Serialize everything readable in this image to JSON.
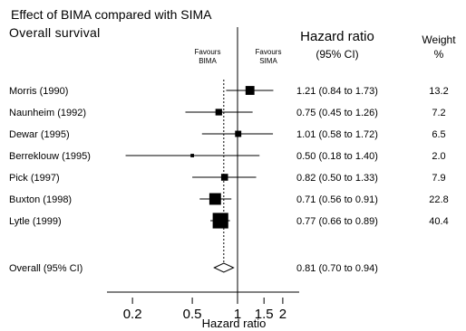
{
  "chart_data": {
    "type": "forest",
    "title": "Effect of BIMA compared with SIMA",
    "subtitle": "Overall survival",
    "left_favours": "Favours BIMA",
    "right_favours": "Favours SIMA",
    "hr_header": "Hazard ratio",
    "hr_subheader": "(95% CI)",
    "weight_header": "Weight",
    "weight_unit": "%",
    "xlabel": "Hazard ratio",
    "x_scale": "log",
    "x_ticks": [
      0.2,
      0.5,
      1,
      1.5,
      2
    ],
    "x_tick_labels": [
      "0.2",
      "0.5",
      "1",
      "1.5",
      "2"
    ],
    "reference_line": 1,
    "pooled_line": 0.81,
    "studies": [
      {
        "name": "Morris (1990)",
        "hr": 1.21,
        "lo": 0.84,
        "hi": 1.73,
        "ci_text": "1.21 (0.84 to 1.73)",
        "weight": 13.2,
        "weight_text": "13.2"
      },
      {
        "name": "Naunheim (1992)",
        "hr": 0.75,
        "lo": 0.45,
        "hi": 1.26,
        "ci_text": "0.75 (0.45 to 1.26)",
        "weight": 7.2,
        "weight_text": "7.2"
      },
      {
        "name": "Dewar (1995)",
        "hr": 1.01,
        "lo": 0.58,
        "hi": 1.72,
        "ci_text": "1.01 (0.58 to 1.72)",
        "weight": 6.5,
        "weight_text": "6.5"
      },
      {
        "name": "Berreklouw (1995)",
        "hr": 0.5,
        "lo": 0.18,
        "hi": 1.4,
        "ci_text": "0.50 (0.18 to 1.40)",
        "weight": 2.0,
        "weight_text": "2.0"
      },
      {
        "name": "Pick (1997)",
        "hr": 0.82,
        "lo": 0.5,
        "hi": 1.33,
        "ci_text": "0.82 (0.50 to 1.33)",
        "weight": 7.9,
        "weight_text": "7.9"
      },
      {
        "name": "Buxton (1998)",
        "hr": 0.71,
        "lo": 0.56,
        "hi": 0.91,
        "ci_text": "0.71 (0.56 to 0.91)",
        "weight": 22.8,
        "weight_text": "22.8"
      },
      {
        "name": "Lytle (1999)",
        "hr": 0.77,
        "lo": 0.66,
        "hi": 0.89,
        "ci_text": "0.77 (0.66 to 0.89)",
        "weight": 40.4,
        "weight_text": "40.4"
      }
    ],
    "overall": {
      "name": "Overall (95% CI)",
      "hr": 0.81,
      "lo": 0.7,
      "hi": 0.94,
      "ci_text": "0.81 (0.70 to 0.94)"
    }
  }
}
